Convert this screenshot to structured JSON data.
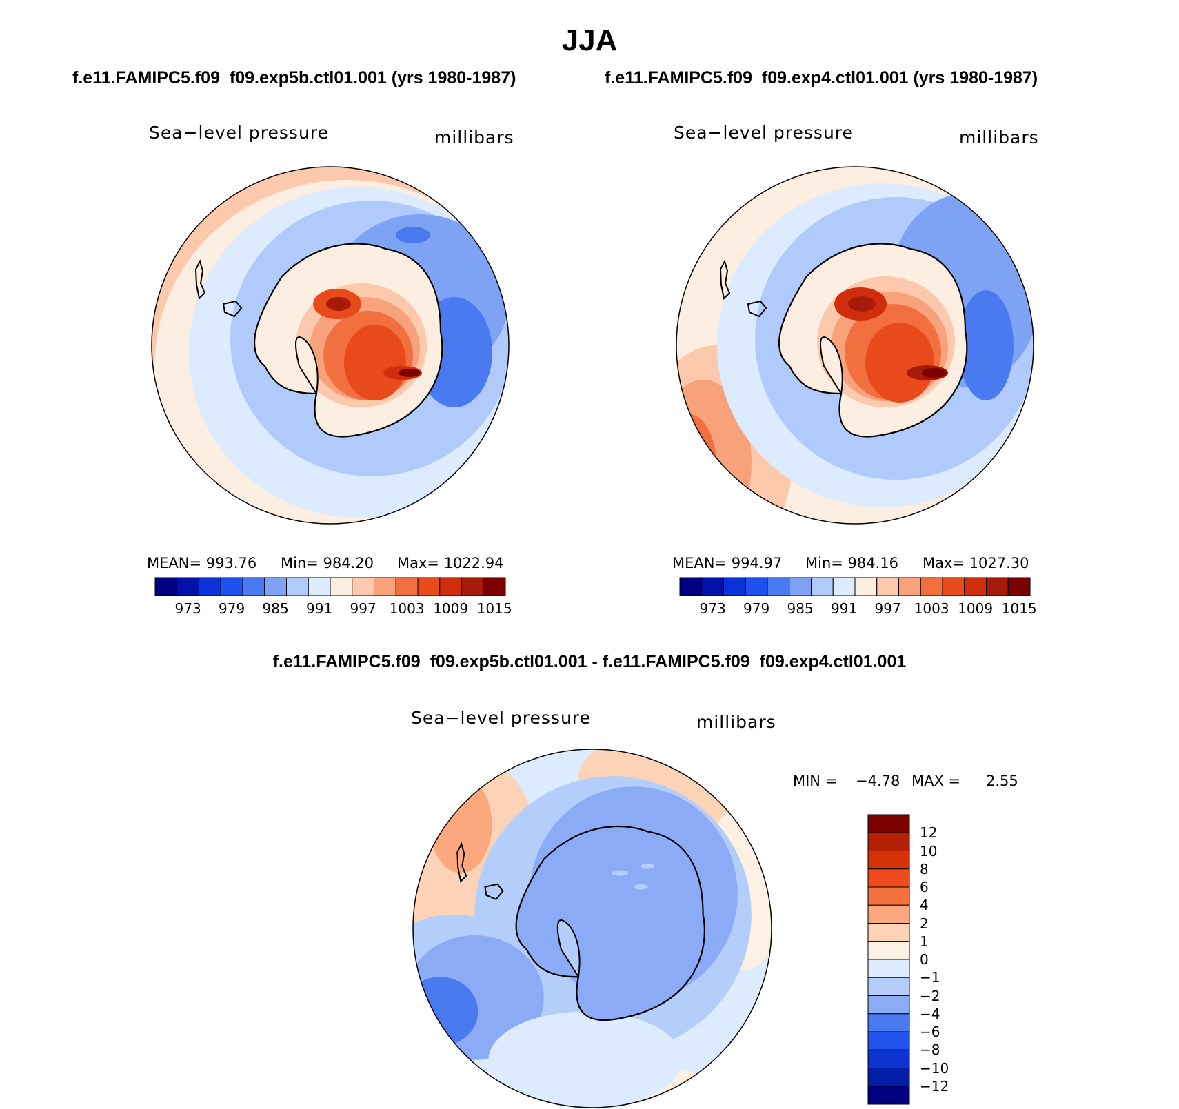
{
  "figure": {
    "season": "JJA",
    "run_a_title": "f.e11.FAMIPC5.f09_f09.exp5b.ctl01.001 (yrs 1980-1987)",
    "run_b_title": "f.e11.FAMIPC5.f09_f09.exp4.ctl01.001 (yrs 1980-1987)",
    "diff_title": "f.e11.FAMIPC5.f09_f09.exp5b.ctl01.001 - f.e11.FAMIPC5.f09_f09.exp4.ctl01.001"
  },
  "panels": [
    {
      "field": "Sea−level pressure",
      "units": "millibars",
      "stats": {
        "mean": "MEAN= 993.76",
        "min": "Min= 984.20",
        "max": "Max= 1022.94"
      }
    },
    {
      "field": "Sea−level pressure",
      "units": "millibars",
      "stats": {
        "mean": "MEAN= 994.97",
        "min": "Min= 984.16",
        "max": "Max= 1027.30"
      }
    }
  ],
  "diff_panel": {
    "field": "Sea−level pressure",
    "units": "millibars",
    "min_label": "MIN =",
    "min_value": "−4.78",
    "max_label": "MAX =",
    "max_value": "2.55"
  },
  "abs_colorbar": {
    "colors": [
      "#000080",
      "#0012a8",
      "#0a32d6",
      "#2050f0",
      "#4a7af0",
      "#7fa3f4",
      "#b0cbfb",
      "#dcebfd",
      "#fdeee2",
      "#fcc9ac",
      "#f8a27c",
      "#f2703f",
      "#e94a1c",
      "#cf2d0c",
      "#a61a08",
      "#7b0000"
    ],
    "tick_labels": [
      "973",
      "979",
      "985",
      "991",
      "997",
      "1003",
      "1009",
      "1015"
    ]
  },
  "diff_colorbar": {
    "colors_top_to_bottom": [
      "#7b0000",
      "#b41f06",
      "#d63208",
      "#ef4b1c",
      "#f4713e",
      "#fba87e",
      "#fdd3b8",
      "#fdf1e3",
      "#dcebfd",
      "#b3cefb",
      "#8cabf6",
      "#4a7af0",
      "#2353ea",
      "#0d33d1",
      "#001ea6",
      "#000080"
    ],
    "tick_labels_top_to_bottom": [
      "12",
      "10",
      "8",
      "6",
      "4",
      "2",
      "1",
      "0",
      "−1",
      "−2",
      "−4",
      "−6",
      "−8",
      "−10",
      "−12"
    ]
  },
  "chart_data": [
    {
      "type": "heatmap",
      "title": "Sea-level pressure",
      "subtitle": "f.e11.FAMIPC5.f09_f09.exp5b.ctl01.001 (yrs 1980-1987)",
      "units": "millibars",
      "mean": 993.76,
      "min": 984.2,
      "max": 1022.94,
      "levels": [
        973,
        976,
        979,
        982,
        985,
        988,
        991,
        994,
        997,
        1000,
        1003,
        1006,
        1009,
        1012,
        1015
      ]
    },
    {
      "type": "heatmap",
      "title": "Sea-level pressure",
      "subtitle": "f.e11.FAMIPC5.f09_f09.exp4.ctl01.001 (yrs 1980-1987)",
      "units": "millibars",
      "mean": 994.97,
      "min": 984.16,
      "max": 1027.3,
      "levels": [
        973,
        976,
        979,
        982,
        985,
        988,
        991,
        994,
        997,
        1000,
        1003,
        1006,
        1009,
        1012,
        1015
      ]
    },
    {
      "type": "heatmap",
      "title": "Sea-level pressure",
      "subtitle": "f.e11.FAMIPC5.f09_f09.exp5b.ctl01.001 - f.e11.FAMIPC5.f09_f09.exp4.ctl01.001",
      "units": "millibars",
      "min": -4.78,
      "max": 2.55,
      "levels": [
        -12,
        -10,
        -8,
        -6,
        -4,
        -2,
        -1,
        0,
        1,
        2,
        4,
        6,
        8,
        10,
        12
      ]
    }
  ]
}
